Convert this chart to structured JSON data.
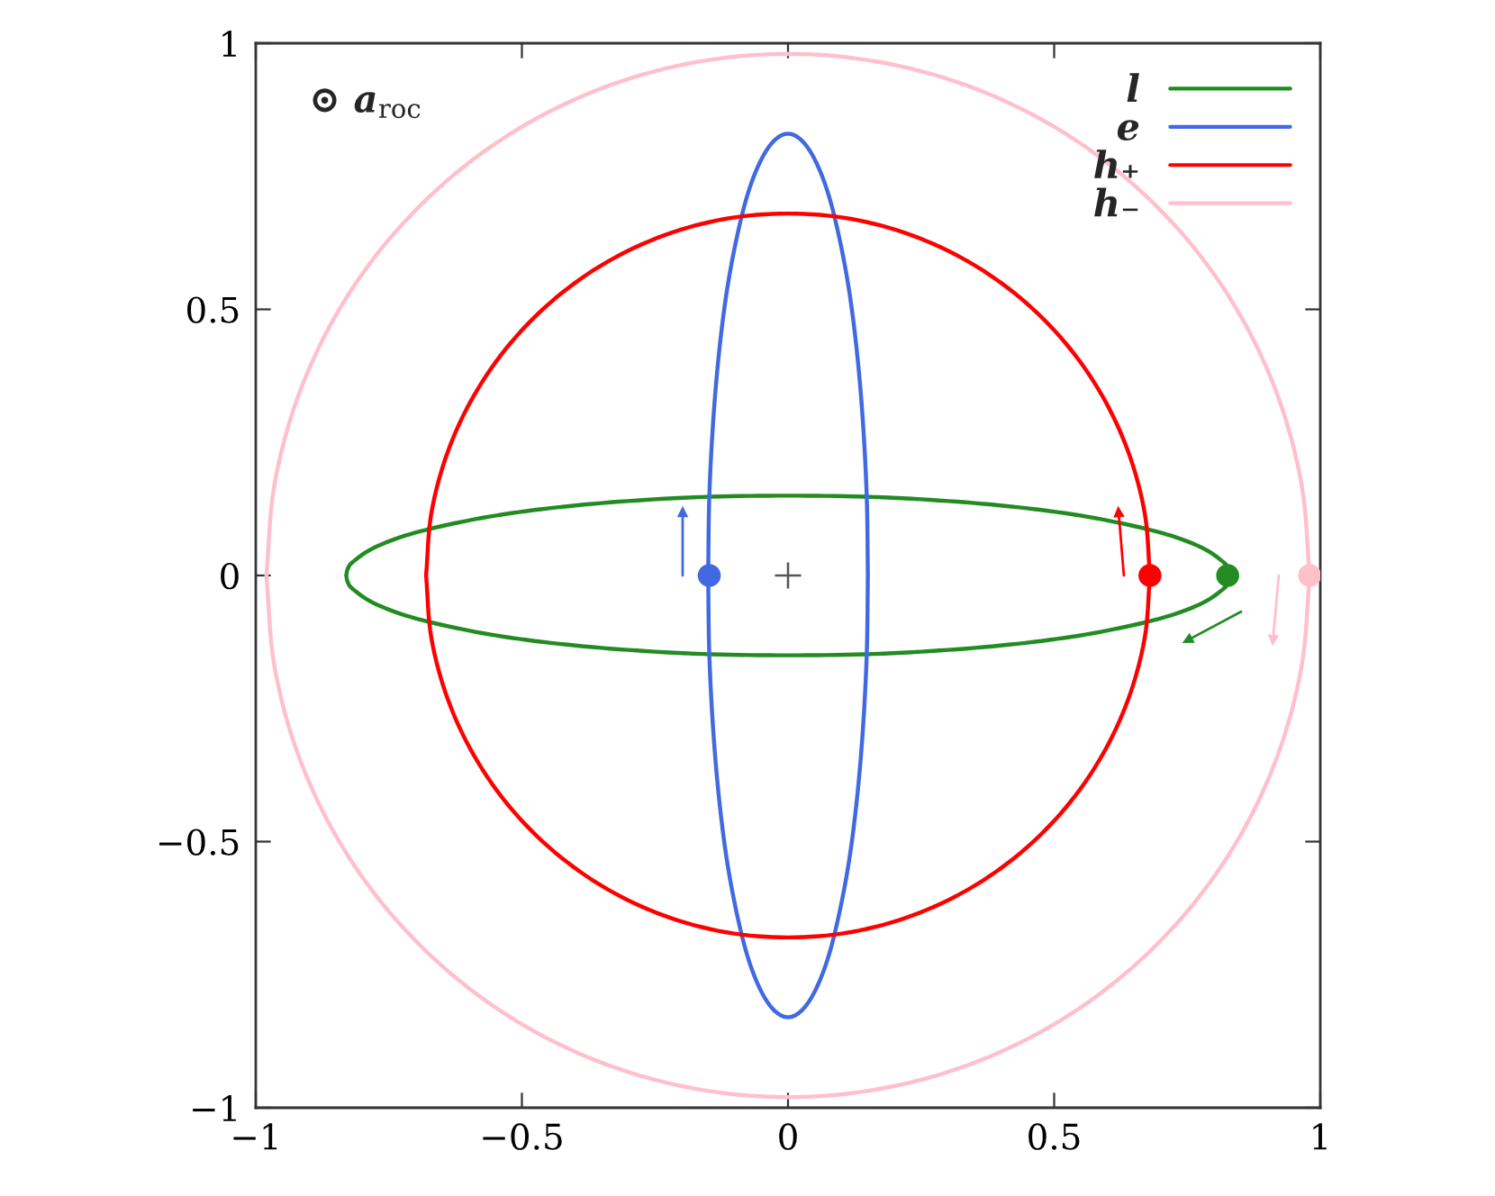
{
  "chart_data": {
    "type": "line",
    "xlim": [
      -1,
      1
    ],
    "ylim": [
      -1,
      1
    ],
    "xticks": [
      {
        "value": -1,
        "label": "−1"
      },
      {
        "value": -0.5,
        "label": "−0.5"
      },
      0,
      0.5,
      1
    ],
    "yticks": [
      {
        "value": -1,
        "label": "−1"
      },
      {
        "value": -0.5,
        "label": "−0.5"
      },
      0,
      0.5,
      1
    ],
    "legend": "top right",
    "annotations": [
      "⊙ a$_{roc}$"
    ],
    "series": [
      {
        "name": "l",
        "color": "#228b22",
        "x": [
          -0.83,
          -0.827,
          -0.817,
          -0.78,
          -0.719,
          -0.636,
          -0.534,
          -0.415,
          -0.284,
          -0.144,
          0,
          0.144,
          0.284,
          0.415,
          0.534,
          0.636,
          0.719,
          0.78,
          0.817,
          0.827,
          0.83,
          null,
          -0.83,
          -0.827,
          -0.817,
          -0.78,
          -0.719,
          -0.636,
          -0.534,
          -0.415,
          -0.284,
          -0.144,
          0,
          0.144,
          0.284,
          0.415,
          0.534,
          0.636,
          0.719,
          0.78,
          0.817,
          0.827,
          0.83
        ],
        "values": [
          0,
          0.013,
          0.026,
          0.051,
          0.075,
          0.096,
          0.115,
          0.13,
          0.141,
          0.148,
          0.15,
          0.148,
          0.141,
          0.13,
          0.115,
          0.096,
          0.075,
          0.051,
          0.026,
          0.013,
          0,
          null,
          0,
          -0.013,
          -0.026,
          -0.051,
          -0.075,
          -0.096,
          -0.115,
          -0.13,
          -0.141,
          -0.148,
          -0.15,
          -0.148,
          -0.141,
          -0.13,
          -0.115,
          -0.096,
          -0.075,
          -0.051,
          -0.026,
          -0.013,
          0
        ]
      },
      {
        "name": "e",
        "color": "#4169e1",
        "x": [
          -0.15,
          -0.148,
          -0.141,
          -0.13,
          -0.115,
          -0.096,
          -0.075,
          -0.051,
          -0.026,
          0,
          0.026,
          0.051,
          0.075,
          0.096,
          0.115,
          0.13,
          0.141,
          0.148,
          0.15,
          null,
          -0.15,
          -0.148,
          -0.141,
          -0.13,
          -0.115,
          -0.096,
          -0.075,
          -0.051,
          -0.026,
          0,
          0.026,
          0.051,
          0.075,
          0.096,
          0.115,
          0.13,
          0.141,
          0.148,
          0.15
        ],
        "values": [
          0,
          0.144,
          0.284,
          0.415,
          0.534,
          0.636,
          0.719,
          0.78,
          0.817,
          0.83,
          0.817,
          0.78,
          0.719,
          0.636,
          0.534,
          0.415,
          0.284,
          0.144,
          0,
          null,
          0,
          -0.144,
          -0.284,
          -0.415,
          -0.534,
          -0.636,
          -0.719,
          -0.78,
          -0.817,
          -0.83,
          -0.817,
          -0.78,
          -0.719,
          -0.636,
          -0.534,
          -0.415,
          -0.284,
          -0.144,
          0
        ]
      },
      {
        "name": "h₊",
        "color": "#ff0000",
        "x": [
          -0.68,
          -0.67,
          -0.639,
          -0.589,
          -0.521,
          -0.437,
          -0.34,
          -0.233,
          -0.118,
          0,
          0.118,
          0.233,
          0.34,
          0.437,
          0.521,
          0.589,
          0.639,
          0.67,
          0.68,
          null,
          -0.68,
          -0.67,
          -0.639,
          -0.589,
          -0.521,
          -0.437,
          -0.34,
          -0.233,
          -0.118,
          0,
          0.118,
          0.233,
          0.34,
          0.437,
          0.521,
          0.589,
          0.639,
          0.67,
          0.68
        ],
        "values": [
          0,
          0.118,
          0.233,
          0.34,
          0.437,
          0.521,
          0.589,
          0.639,
          0.67,
          0.68,
          0.67,
          0.639,
          0.589,
          0.521,
          0.437,
          0.34,
          0.233,
          0.118,
          0,
          null,
          0,
          -0.118,
          -0.233,
          -0.34,
          -0.437,
          -0.521,
          -0.589,
          -0.639,
          -0.67,
          -0.68,
          -0.67,
          -0.639,
          -0.589,
          -0.521,
          -0.437,
          -0.34,
          -0.233,
          -0.118,
          0
        ]
      },
      {
        "name": "h₋",
        "color": "#ffc0cb",
        "x": [
          -0.98,
          -0.965,
          -0.921,
          -0.849,
          -0.751,
          -0.63,
          -0.49,
          -0.335,
          -0.17,
          0,
          0.17,
          0.335,
          0.49,
          0.63,
          0.751,
          0.849,
          0.921,
          0.965,
          0.98,
          null,
          -0.98,
          -0.965,
          -0.921,
          -0.849,
          -0.751,
          -0.63,
          -0.49,
          -0.335,
          -0.17,
          0,
          0.17,
          0.335,
          0.49,
          0.63,
          0.751,
          0.849,
          0.921,
          0.965,
          0.98
        ],
        "values": [
          0,
          0.17,
          0.335,
          0.49,
          0.63,
          0.751,
          0.849,
          0.921,
          0.965,
          0.98,
          0.965,
          0.921,
          0.849,
          0.751,
          0.63,
          0.49,
          0.335,
          0.17,
          0,
          null,
          0,
          -0.17,
          -0.335,
          -0.49,
          -0.63,
          -0.751,
          -0.849,
          -0.921,
          -0.965,
          -0.98,
          -0.965,
          -0.921,
          -0.849,
          -0.751,
          -0.63,
          -0.49,
          -0.335,
          -0.17,
          0
        ]
      },
      {
        "color": "#4169e1",
        "marker": "triangle",
        "x": [
          -0.198,
          -0.198
        ],
        "values": [
          0,
          0.12
        ]
      },
      {
        "color": "#ff0000",
        "marker": "triangle",
        "x": [
          0.631,
          0.621
        ],
        "values": [
          0,
          0.12
        ]
      },
      {
        "color": "#228b22",
        "marker": "triangle",
        "x": [
          0.851,
          0.75
        ],
        "values": [
          -0.068,
          -0.122
        ]
      },
      {
        "color": "#ffc0cb",
        "marker": "triangle",
        "x": [
          0.922,
          0.911
        ],
        "values": [
          0,
          -0.122
        ]
      },
      {
        "type": "scatter",
        "marker": "circle",
        "x": [
          -0.148,
          0.68,
          0.826,
          0.98
        ],
        "values": [
          0,
          0,
          0,
          0
        ],
        "colors": [
          "#4169e1",
          "#ff0000",
          "#228b22",
          "#ffc0cb"
        ]
      },
      {
        "type": "scatter",
        "marker": "cross",
        "color": "#555555",
        "x": [
          0
        ],
        "values": [
          0
        ]
      }
    ]
  }
}
